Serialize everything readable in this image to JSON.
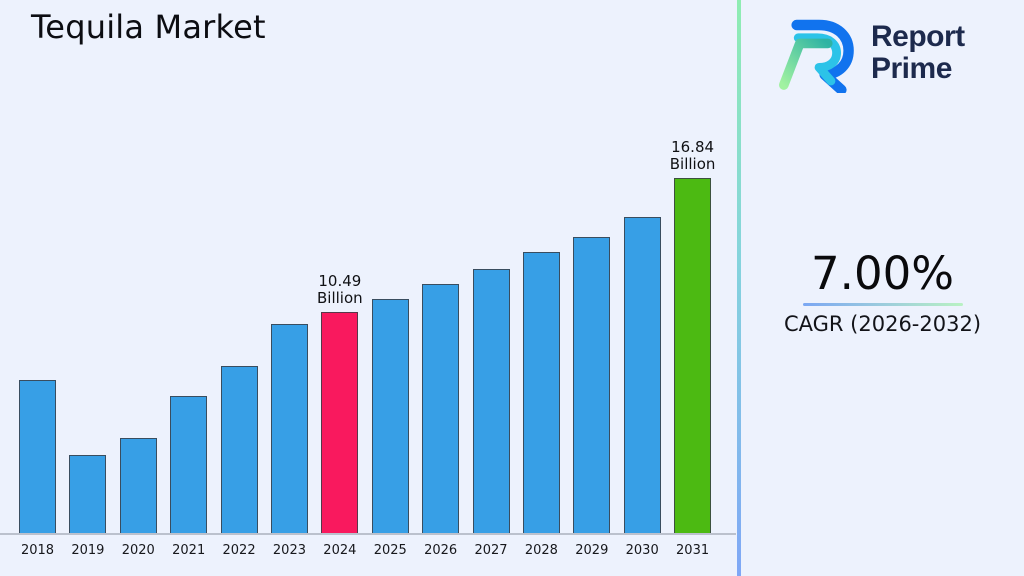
{
  "title": "Tequila Market",
  "logo": {
    "line1": "Report",
    "line2": "Prime",
    "mark_colors": {
      "outer": "#1173ee",
      "inner": "#2cc3e8",
      "leg_light": "#a1f2a1",
      "leg_dark": "#2fb3a3"
    },
    "text_color": "#1d2a4d"
  },
  "stats": {
    "value": "7.00%",
    "label": "CAGR (2026-2032)"
  },
  "colors": {
    "background": "#edf2fd",
    "bar_default": "#379fe6",
    "bar_highlight_2024": "#f9195e",
    "bar_highlight_2031": "#4cba12",
    "divider_top": "#8fedb2",
    "divider_bottom": "#7fa7f6",
    "axis": "#aab0bc"
  },
  "chart_data": {
    "type": "bar",
    "title": "Tequila Market",
    "xlabel": "",
    "ylabel": "",
    "unit": "Billion",
    "categories": [
      "2018",
      "2019",
      "2020",
      "2021",
      "2022",
      "2023",
      "2024",
      "2025",
      "2026",
      "2027",
      "2028",
      "2029",
      "2030",
      "2031"
    ],
    "values": [
      7.27,
      3.68,
      4.53,
      6.51,
      7.93,
      9.91,
      10.49,
      11.09,
      11.8,
      12.51,
      13.31,
      14.02,
      15.01,
      16.84
    ],
    "ylim": [
      0,
      17
    ],
    "grid": false,
    "legend": false,
    "bar_colors": {
      "default": "#379fe6",
      "2024": "#f9195e",
      "2031": "#4cba12"
    },
    "annotations": [
      {
        "category": "2024",
        "lines": [
          "10.49",
          "Billion"
        ]
      },
      {
        "category": "2031",
        "lines": [
          "16.84",
          "Billion"
        ]
      }
    ]
  }
}
